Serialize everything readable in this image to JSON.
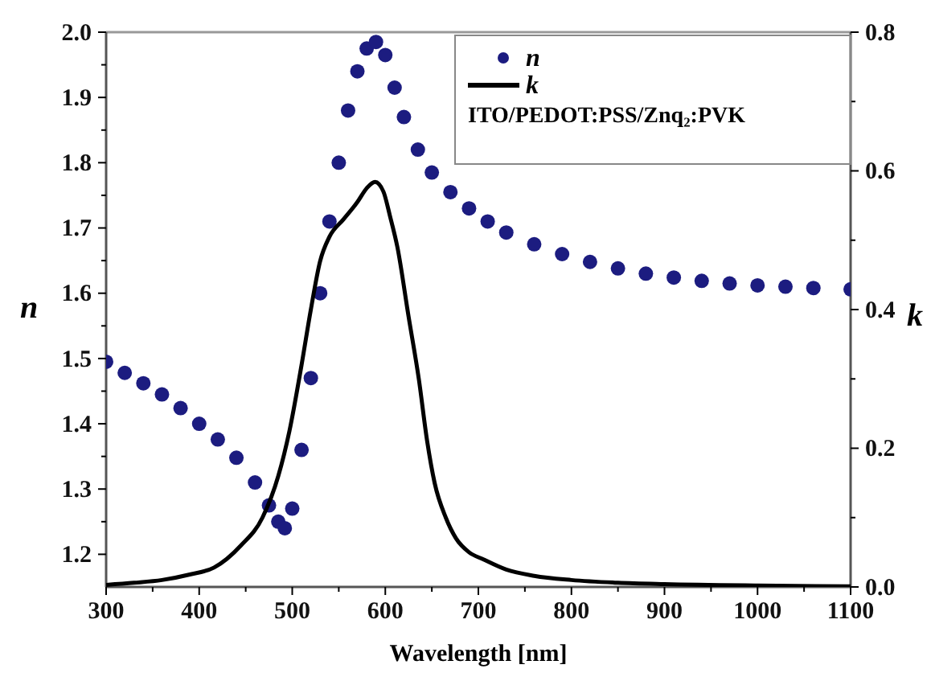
{
  "chart_data": {
    "type": "line",
    "xlabel": "Wavelength [nm]",
    "ylabel": "n",
    "y2label": "k",
    "xlim": [
      300,
      1100
    ],
    "xticks": [
      300,
      {
        "value": 350,
        "label": null
      },
      400,
      {
        "value": 450,
        "label": null
      },
      500,
      {
        "value": 550,
        "label": null
      },
      600,
      {
        "value": 650,
        "label": null
      },
      700,
      {
        "value": 750,
        "label": null
      },
      800,
      {
        "value": 850,
        "label": null
      },
      900,
      {
        "value": 950,
        "label": null
      },
      1000,
      {
        "value": 1050,
        "label": null
      },
      1100
    ],
    "ylim": [
      1.15,
      2.0
    ],
    "yticks": [
      {
        "value": 1.2,
        "label": "1.2"
      },
      {
        "value": 1.25,
        "label": null
      },
      {
        "value": 1.3,
        "label": "1.3"
      },
      {
        "value": 1.35,
        "label": null
      },
      {
        "value": 1.4,
        "label": "1.4"
      },
      {
        "value": 1.45,
        "label": null
      },
      {
        "value": 1.5,
        "label": "1.5"
      },
      {
        "value": 1.55,
        "label": null
      },
      {
        "value": 1.6,
        "label": "1.6"
      },
      {
        "value": 1.65,
        "label": null
      },
      {
        "value": 1.7,
        "label": "1.7"
      },
      {
        "value": 1.75,
        "label": null
      },
      {
        "value": 1.8,
        "label": "1.8"
      },
      {
        "value": 1.85,
        "label": null
      },
      {
        "value": 1.9,
        "label": "1.9"
      },
      {
        "value": 1.95,
        "label": null
      },
      {
        "value": 2.0,
        "label": "2.0"
      }
    ],
    "y2lim": [
      0,
      0.8
    ],
    "y2ticks": [
      {
        "value": 0,
        "label": "0.0"
      },
      {
        "value": 0.1,
        "label": null
      },
      {
        "value": 0.2,
        "label": "0.2"
      },
      {
        "value": 0.3,
        "label": null
      },
      {
        "value": 0.4,
        "label": "0.4"
      },
      {
        "value": 0.5,
        "label": null
      },
      {
        "value": 0.6,
        "label": "0.6"
      },
      {
        "value": 0.7,
        "label": null
      },
      {
        "value": 0.8,
        "label": "0.8"
      }
    ],
    "grid": false,
    "legend": "top right",
    "annotations": [
      "ITO/PEDOT:PSS/Znq₂:PVK"
    ],
    "series": [
      {
        "name": "n",
        "type": "scatter",
        "marker": "circle",
        "color": "#1c1c80",
        "x": [
          300,
          320,
          340,
          360,
          380,
          400,
          420,
          440,
          460,
          475,
          485,
          492,
          500,
          510,
          520,
          530,
          540,
          550,
          560,
          570,
          580,
          590,
          600,
          610,
          620,
          635,
          650,
          670,
          690,
          710,
          730,
          760,
          790,
          820,
          850,
          880,
          910,
          940,
          970,
          1000,
          1030,
          1060,
          1100
        ],
        "values": [
          1.495,
          1.478,
          1.462,
          1.445,
          1.424,
          1.4,
          1.376,
          1.348,
          1.31,
          1.275,
          1.25,
          1.24,
          1.27,
          1.36,
          1.47,
          1.6,
          1.71,
          1.8,
          1.88,
          1.94,
          1.975,
          1.985,
          1.965,
          1.915,
          1.87,
          1.82,
          1.785,
          1.755,
          1.73,
          1.71,
          1.693,
          1.675,
          1.66,
          1.648,
          1.638,
          1.63,
          1.624,
          1.619,
          1.615,
          1.612,
          1.61,
          1.608,
          1.606
        ]
      },
      {
        "name": "k",
        "type": "line",
        "axis": "y2",
        "color": "#000000",
        "line_style": "solid",
        "x": [
          300,
          330,
          360,
          390,
          416,
          445,
          468,
          485,
          497,
          510,
          520,
          530,
          540,
          555,
          570,
          580,
          589,
          598,
          605,
          613,
          625,
          636,
          645,
          653,
          665,
          676,
          690,
          705,
          730,
          760,
          800,
          850,
          900,
          1000,
          1100
        ],
        "values": [
          0.003,
          0.006,
          0.01,
          0.018,
          0.028,
          0.06,
          0.1,
          0.16,
          0.225,
          0.32,
          0.4,
          0.47,
          0.505,
          0.53,
          0.555,
          0.575,
          0.584,
          0.57,
          0.535,
          0.49,
          0.39,
          0.3,
          0.21,
          0.15,
          0.1,
          0.07,
          0.05,
          0.04,
          0.025,
          0.016,
          0.01,
          0.006,
          0.004,
          0.002,
          0.001
        ]
      }
    ]
  }
}
